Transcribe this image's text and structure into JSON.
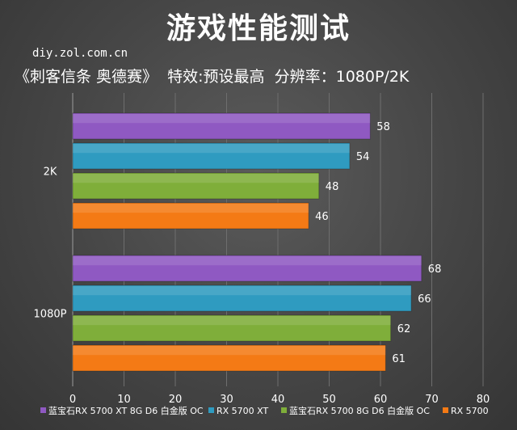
{
  "header": {
    "title": "游戏性能测试",
    "source": "diy.zol.com.cn",
    "subtitle": "《刺客信条 奥德赛》  特效:预设最高  分辨率：1080P/2K"
  },
  "colors": {
    "background": "#454545",
    "axis_text": "#ffffff",
    "gridline": "#6e6e6e"
  },
  "chart_data": {
    "type": "bar",
    "orientation": "horizontal",
    "categories": [
      "2K",
      "1080P"
    ],
    "series": [
      {
        "name": "蓝宝石RX 5700 XT 8G D6 白金版 OC",
        "color": "#8f59c2",
        "values": [
          58,
          68
        ]
      },
      {
        "name": "RX 5700 XT",
        "color": "#2f9bc0",
        "values": [
          54,
          66
        ]
      },
      {
        "name": "蓝宝石RX 5700 8G D6 白金版 OC",
        "color": "#7fae3a",
        "values": [
          48,
          62
        ]
      },
      {
        "name": "RX 5700",
        "color": "#f47a15",
        "values": [
          46,
          61
        ]
      }
    ],
    "xlim": [
      0,
      80
    ],
    "xticks": [
      0,
      10,
      20,
      30,
      40,
      50,
      60,
      70,
      80
    ],
    "grid": true,
    "legend_position": "bottom"
  }
}
